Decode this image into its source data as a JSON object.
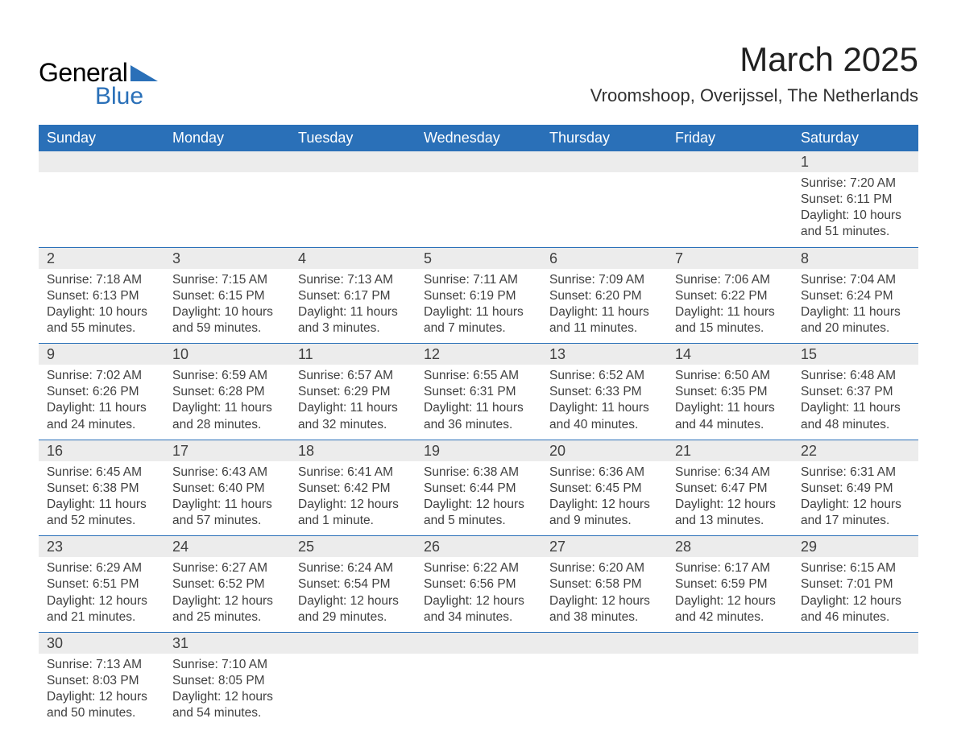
{
  "logo": {
    "text1": "General",
    "text2": "Blue",
    "triangle_color": "#2a70b8"
  },
  "title": "March 2025",
  "subtitle": "Vroomshoop, Overijssel, The Netherlands",
  "colors": {
    "header_bg": "#2a70b8",
    "header_text": "#ffffff",
    "daynum_bg": "#ececec",
    "row_border": "#2a70b8",
    "body_text": "#404040",
    "background": "#ffffff"
  },
  "typography": {
    "title_fontsize": 42,
    "subtitle_fontsize": 22,
    "header_fontsize": 18,
    "daynum_fontsize": 18,
    "detail_fontsize": 15.5,
    "font_family": "Arial"
  },
  "weekdays": [
    "Sunday",
    "Monday",
    "Tuesday",
    "Wednesday",
    "Thursday",
    "Friday",
    "Saturday"
  ],
  "weeks": [
    [
      null,
      null,
      null,
      null,
      null,
      null,
      {
        "d": "1",
        "sr": "Sunrise: 7:20 AM",
        "ss": "Sunset: 6:11 PM",
        "dl1": "Daylight: 10 hours",
        "dl2": "and 51 minutes."
      }
    ],
    [
      {
        "d": "2",
        "sr": "Sunrise: 7:18 AM",
        "ss": "Sunset: 6:13 PM",
        "dl1": "Daylight: 10 hours",
        "dl2": "and 55 minutes."
      },
      {
        "d": "3",
        "sr": "Sunrise: 7:15 AM",
        "ss": "Sunset: 6:15 PM",
        "dl1": "Daylight: 10 hours",
        "dl2": "and 59 minutes."
      },
      {
        "d": "4",
        "sr": "Sunrise: 7:13 AM",
        "ss": "Sunset: 6:17 PM",
        "dl1": "Daylight: 11 hours",
        "dl2": "and 3 minutes."
      },
      {
        "d": "5",
        "sr": "Sunrise: 7:11 AM",
        "ss": "Sunset: 6:19 PM",
        "dl1": "Daylight: 11 hours",
        "dl2": "and 7 minutes."
      },
      {
        "d": "6",
        "sr": "Sunrise: 7:09 AM",
        "ss": "Sunset: 6:20 PM",
        "dl1": "Daylight: 11 hours",
        "dl2": "and 11 minutes."
      },
      {
        "d": "7",
        "sr": "Sunrise: 7:06 AM",
        "ss": "Sunset: 6:22 PM",
        "dl1": "Daylight: 11 hours",
        "dl2": "and 15 minutes."
      },
      {
        "d": "8",
        "sr": "Sunrise: 7:04 AM",
        "ss": "Sunset: 6:24 PM",
        "dl1": "Daylight: 11 hours",
        "dl2": "and 20 minutes."
      }
    ],
    [
      {
        "d": "9",
        "sr": "Sunrise: 7:02 AM",
        "ss": "Sunset: 6:26 PM",
        "dl1": "Daylight: 11 hours",
        "dl2": "and 24 minutes."
      },
      {
        "d": "10",
        "sr": "Sunrise: 6:59 AM",
        "ss": "Sunset: 6:28 PM",
        "dl1": "Daylight: 11 hours",
        "dl2": "and 28 minutes."
      },
      {
        "d": "11",
        "sr": "Sunrise: 6:57 AM",
        "ss": "Sunset: 6:29 PM",
        "dl1": "Daylight: 11 hours",
        "dl2": "and 32 minutes."
      },
      {
        "d": "12",
        "sr": "Sunrise: 6:55 AM",
        "ss": "Sunset: 6:31 PM",
        "dl1": "Daylight: 11 hours",
        "dl2": "and 36 minutes."
      },
      {
        "d": "13",
        "sr": "Sunrise: 6:52 AM",
        "ss": "Sunset: 6:33 PM",
        "dl1": "Daylight: 11 hours",
        "dl2": "and 40 minutes."
      },
      {
        "d": "14",
        "sr": "Sunrise: 6:50 AM",
        "ss": "Sunset: 6:35 PM",
        "dl1": "Daylight: 11 hours",
        "dl2": "and 44 minutes."
      },
      {
        "d": "15",
        "sr": "Sunrise: 6:48 AM",
        "ss": "Sunset: 6:37 PM",
        "dl1": "Daylight: 11 hours",
        "dl2": "and 48 minutes."
      }
    ],
    [
      {
        "d": "16",
        "sr": "Sunrise: 6:45 AM",
        "ss": "Sunset: 6:38 PM",
        "dl1": "Daylight: 11 hours",
        "dl2": "and 52 minutes."
      },
      {
        "d": "17",
        "sr": "Sunrise: 6:43 AM",
        "ss": "Sunset: 6:40 PM",
        "dl1": "Daylight: 11 hours",
        "dl2": "and 57 minutes."
      },
      {
        "d": "18",
        "sr": "Sunrise: 6:41 AM",
        "ss": "Sunset: 6:42 PM",
        "dl1": "Daylight: 12 hours",
        "dl2": "and 1 minute."
      },
      {
        "d": "19",
        "sr": "Sunrise: 6:38 AM",
        "ss": "Sunset: 6:44 PM",
        "dl1": "Daylight: 12 hours",
        "dl2": "and 5 minutes."
      },
      {
        "d": "20",
        "sr": "Sunrise: 6:36 AM",
        "ss": "Sunset: 6:45 PM",
        "dl1": "Daylight: 12 hours",
        "dl2": "and 9 minutes."
      },
      {
        "d": "21",
        "sr": "Sunrise: 6:34 AM",
        "ss": "Sunset: 6:47 PM",
        "dl1": "Daylight: 12 hours",
        "dl2": "and 13 minutes."
      },
      {
        "d": "22",
        "sr": "Sunrise: 6:31 AM",
        "ss": "Sunset: 6:49 PM",
        "dl1": "Daylight: 12 hours",
        "dl2": "and 17 minutes."
      }
    ],
    [
      {
        "d": "23",
        "sr": "Sunrise: 6:29 AM",
        "ss": "Sunset: 6:51 PM",
        "dl1": "Daylight: 12 hours",
        "dl2": "and 21 minutes."
      },
      {
        "d": "24",
        "sr": "Sunrise: 6:27 AM",
        "ss": "Sunset: 6:52 PM",
        "dl1": "Daylight: 12 hours",
        "dl2": "and 25 minutes."
      },
      {
        "d": "25",
        "sr": "Sunrise: 6:24 AM",
        "ss": "Sunset: 6:54 PM",
        "dl1": "Daylight: 12 hours",
        "dl2": "and 29 minutes."
      },
      {
        "d": "26",
        "sr": "Sunrise: 6:22 AM",
        "ss": "Sunset: 6:56 PM",
        "dl1": "Daylight: 12 hours",
        "dl2": "and 34 minutes."
      },
      {
        "d": "27",
        "sr": "Sunrise: 6:20 AM",
        "ss": "Sunset: 6:58 PM",
        "dl1": "Daylight: 12 hours",
        "dl2": "and 38 minutes."
      },
      {
        "d": "28",
        "sr": "Sunrise: 6:17 AM",
        "ss": "Sunset: 6:59 PM",
        "dl1": "Daylight: 12 hours",
        "dl2": "and 42 minutes."
      },
      {
        "d": "29",
        "sr": "Sunrise: 6:15 AM",
        "ss": "Sunset: 7:01 PM",
        "dl1": "Daylight: 12 hours",
        "dl2": "and 46 minutes."
      }
    ],
    [
      {
        "d": "30",
        "sr": "Sunrise: 7:13 AM",
        "ss": "Sunset: 8:03 PM",
        "dl1": "Daylight: 12 hours",
        "dl2": "and 50 minutes."
      },
      {
        "d": "31",
        "sr": "Sunrise: 7:10 AM",
        "ss": "Sunset: 8:05 PM",
        "dl1": "Daylight: 12 hours",
        "dl2": "and 54 minutes."
      },
      null,
      null,
      null,
      null,
      null
    ]
  ]
}
